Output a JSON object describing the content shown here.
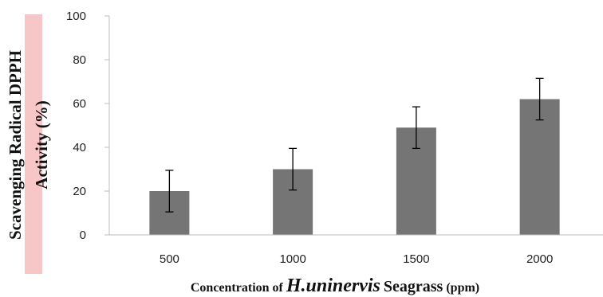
{
  "chart_data": {
    "type": "bar",
    "categories": [
      "500",
      "1000",
      "1500",
      "2000"
    ],
    "series": [
      {
        "values": [
          20,
          30,
          49,
          62
        ],
        "error": [
          9.5,
          9.5,
          9.5,
          9.5
        ]
      }
    ],
    "ylim": [
      0,
      100
    ],
    "yticks": [
      0,
      20,
      40,
      60,
      80,
      100
    ],
    "ylabel_line1": "Scavenging Radical  DPPH",
    "ylabel_line2": "Activity (%)",
    "xlabel_prefix": "Concentration of ",
    "xlabel_species": "H.uninervis",
    "xlabel_middle": " Seagrass",
    "xlabel_unit": " (ppm)",
    "bar_color": "#757575",
    "ylabel_highlight_color": "#f7c6c6",
    "grid": false,
    "legend": "none"
  }
}
